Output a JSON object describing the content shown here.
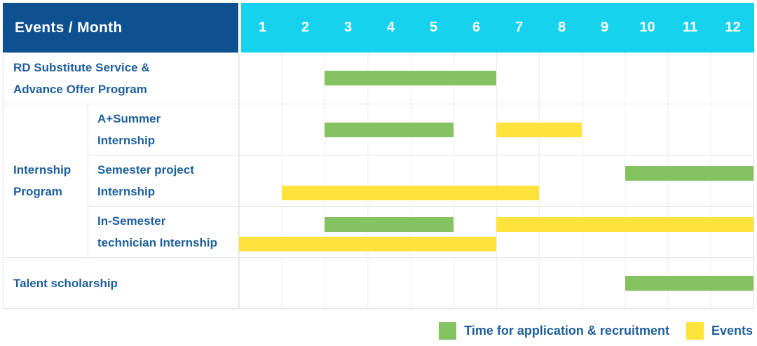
{
  "colors": {
    "header_bg": "#0d5191",
    "months_bg": "#17d2ee",
    "text_blue": "#1e5f9e",
    "green": "#85c262",
    "yellow": "#ffe33d",
    "grid": "#e3e3e3"
  },
  "chart_data": {
    "type": "bar",
    "subtype": "gantt",
    "title": "Events / Month",
    "xlabel": "Month",
    "x_range": [
      1,
      12
    ],
    "months": [
      "1",
      "2",
      "3",
      "4",
      "5",
      "6",
      "7",
      "8",
      "9",
      "10",
      "11",
      "12"
    ],
    "grid": "on",
    "legend_position": "bottom-right",
    "group_label": "Internship\nProgram",
    "legend": [
      {
        "kind": "application",
        "label": "Time for application & recruitment",
        "color": "#85c262"
      },
      {
        "kind": "events",
        "label": "Events",
        "color": "#ffe33d"
      }
    ],
    "tasks": [
      {
        "label": "RD Substitute Service &\nAdvance Offer Program",
        "group": "",
        "bars": [
          {
            "kind": "application",
            "start_month": 3,
            "end_month": 6,
            "line": "center"
          }
        ]
      },
      {
        "label": "A+Summer\nInternship",
        "group": "Internship Program",
        "bars": [
          {
            "kind": "application",
            "start_month": 3,
            "end_month": 5,
            "line": "center"
          },
          {
            "kind": "events",
            "start_month": 7,
            "end_month": 8,
            "line": "center"
          }
        ]
      },
      {
        "label": "Semester project\nInternship",
        "group": "Internship Program",
        "bars": [
          {
            "kind": "application",
            "start_month": 10,
            "end_month": 12,
            "line": "top"
          },
          {
            "kind": "events",
            "start_month": 2,
            "end_month": 7,
            "line": "bottom"
          }
        ]
      },
      {
        "label": "In-Semester\ntechnician Internship",
        "group": "Internship Program",
        "bars": [
          {
            "kind": "application",
            "start_month": 3,
            "end_month": 5,
            "line": "top"
          },
          {
            "kind": "events",
            "start_month": 7,
            "end_month": 12,
            "line": "top"
          },
          {
            "kind": "events",
            "start_month": 1,
            "end_month": 6,
            "line": "bottom"
          }
        ]
      },
      {
        "label": "Talent scholarship",
        "group": "",
        "bars": [
          {
            "kind": "application",
            "start_month": 10,
            "end_month": 12,
            "line": "center"
          }
        ]
      }
    ]
  }
}
